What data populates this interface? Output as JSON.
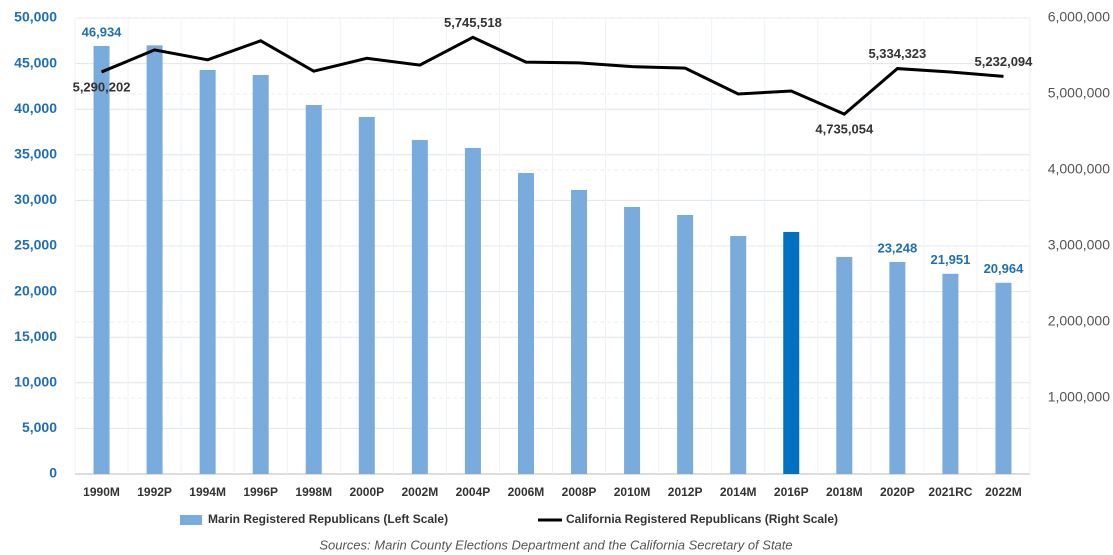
{
  "chart_data": {
    "type": "bar_line",
    "categories": [
      "1990M",
      "1992P",
      "1994M",
      "1996P",
      "1998M",
      "2000P",
      "2002M",
      "2004P",
      "2006M",
      "2008P",
      "2010M",
      "2012P",
      "2014M",
      "2016P",
      "2018M",
      "2020P",
      "2021RC",
      "2022M"
    ],
    "series": [
      {
        "name": "Marin Registered  Republicans (Left Scale)",
        "type": "bar",
        "color": "#7aabdd",
        "highlight_color": "#0070c0",
        "highlight": [
          13
        ],
        "values": [
          46934,
          47000,
          44300,
          43750,
          40460,
          39150,
          36620,
          35750,
          33000,
          31140,
          29280,
          28400,
          26100,
          26540,
          23800,
          23248,
          21951,
          20964
        ],
        "value_labels": [
          "46,934",
          null,
          null,
          null,
          null,
          null,
          null,
          null,
          null,
          null,
          null,
          null,
          null,
          null,
          null,
          "23,248",
          "21,951",
          "20,964"
        ]
      },
      {
        "name": "California Registered  Republicans (Right Scale)",
        "type": "line",
        "axis": "y2",
        "color": "#000000",
        "values": [
          5290202,
          5580000,
          5450000,
          5700000,
          5300000,
          5470000,
          5380000,
          5745518,
          5420000,
          5410000,
          5360000,
          5340000,
          5000000,
          5040000,
          4735054,
          5334323,
          5290000,
          5232094
        ],
        "value_labels": [
          "5,290,202",
          null,
          null,
          null,
          null,
          null,
          null,
          "5,745,518",
          null,
          null,
          null,
          null,
          null,
          null,
          "4,735,054",
          "5,334,323",
          null,
          "5,232,094"
        ]
      }
    ],
    "ylim": [
      0,
      50000
    ],
    "yticks": [
      0,
      {
        "value": 5000,
        "label": "5,000"
      },
      {
        "value": 10000,
        "label": "10,000"
      },
      {
        "value": 15000,
        "label": "15,000"
      },
      {
        "value": 20000,
        "label": "20,000"
      },
      {
        "value": 25000,
        "label": "25,000"
      },
      {
        "value": 30000,
        "label": "30,000"
      },
      {
        "value": 35000,
        "label": "35,000"
      },
      {
        "value": 40000,
        "label": "40,000"
      },
      {
        "value": 45000,
        "label": "45,000"
      },
      {
        "value": 50000,
        "label": "50,000"
      }
    ],
    "y2lim": [
      0,
      6000000
    ],
    "y2ticks": [
      {
        "value": 1000000,
        "label": "1,000,000"
      },
      {
        "value": 2000000,
        "label": "2,000,000"
      },
      {
        "value": 3000000,
        "label": "3,000,000"
      },
      {
        "value": 4000000,
        "label": "4,000,000"
      },
      {
        "value": 5000000,
        "label": "5,000,000"
      },
      {
        "value": 6000000,
        "label": "6,000,000"
      }
    ],
    "grid": true,
    "source": "Sources: Marin County Elections Department and the California Secretary of State"
  }
}
